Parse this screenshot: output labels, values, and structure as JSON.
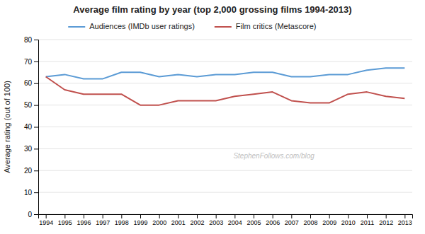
{
  "chart_data": {
    "type": "line",
    "title": "Average film rating by year (top 2,000 grossing films 1994-2013)",
    "ylabel": "Average rating (out of 100)",
    "x": [
      1994,
      1995,
      1996,
      1997,
      1998,
      1999,
      2000,
      2001,
      2002,
      2003,
      2004,
      2005,
      2006,
      2007,
      2008,
      2009,
      2010,
      2011,
      2012,
      2013
    ],
    "series": [
      {
        "name": "Audiences (IMDb user ratings)",
        "color": "#5B9BD5",
        "values": [
          63,
          64,
          62,
          62,
          65,
          65,
          63,
          64,
          63,
          64,
          64,
          65,
          65,
          63,
          63,
          64,
          64,
          66,
          67,
          67
        ]
      },
      {
        "name": "Film critics (Metascore)",
        "color": "#C0504D",
        "values": [
          63,
          57,
          55,
          55,
          55,
          50,
          50,
          52,
          52,
          52,
          54,
          55,
          56,
          52,
          51,
          51,
          55,
          56,
          54,
          53
        ]
      }
    ],
    "xlim": [
      1993.6,
      2013.4
    ],
    "xticks": [
      1994,
      1995,
      1996,
      1997,
      1998,
      1999,
      2000,
      2001,
      2002,
      2003,
      2004,
      2005,
      2006,
      2007,
      2008,
      2009,
      2010,
      2011,
      2012,
      2013
    ],
    "ylim": [
      0,
      80
    ],
    "yticks": [
      0,
      10,
      20,
      30,
      40,
      50,
      60,
      70,
      80
    ],
    "annotations": [
      "StephenFollows.com/blog"
    ],
    "grid": true,
    "legend": "top"
  }
}
